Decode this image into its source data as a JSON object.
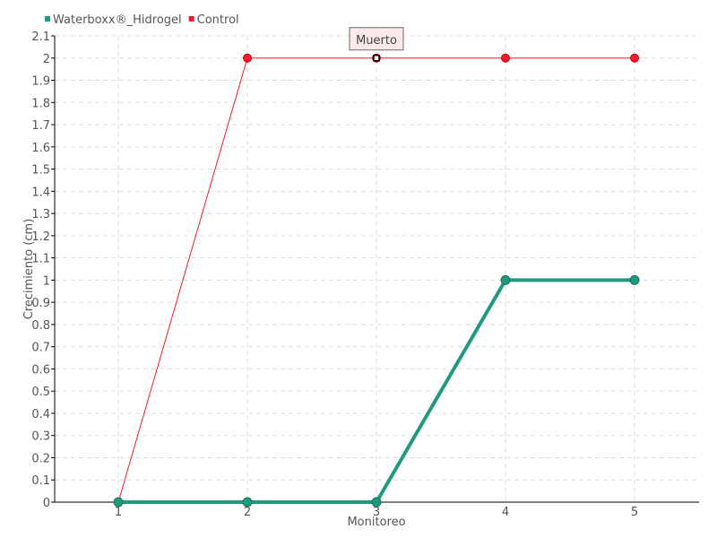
{
  "chart_data": {
    "type": "line",
    "xlabel": "Monitoreo",
    "ylabel": "Crecimiento (cm)",
    "x": [
      1,
      2,
      3,
      4,
      5
    ],
    "ylim": [
      0,
      2.1
    ],
    "yticks": [
      "0",
      "0.1",
      "0.2",
      "0.3",
      "0.4",
      "0.5",
      "0.6",
      "0.7",
      "0.8",
      "0.9",
      "1",
      "1.1",
      "1.2",
      "1.3",
      "1.4",
      "1.5",
      "1.6",
      "1.7",
      "1.8",
      "1.9",
      "2",
      "2.1"
    ],
    "xticks": [
      "1",
      "2",
      "3",
      "4",
      "5"
    ],
    "grid": true,
    "legend": "top-left",
    "series": [
      {
        "name": "Waterboxx®_Hidrogel",
        "color": "#1f9a7e",
        "values": [
          0,
          0,
          0,
          1,
          1
        ]
      },
      {
        "name": "Control",
        "color": "#ee1c2e",
        "values": [
          0,
          2,
          2,
          2,
          2
        ]
      }
    ],
    "tooltip": {
      "text": "Muerto",
      "series": "Control",
      "x": 3
    }
  }
}
